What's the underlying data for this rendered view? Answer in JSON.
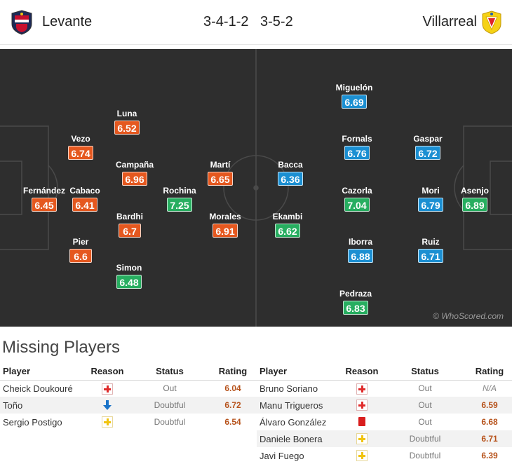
{
  "header": {
    "home_team": "Levante",
    "home_formation": "3-4-1-2",
    "away_formation": "3-5-2",
    "away_team": "Villarreal"
  },
  "pitch": {
    "watermark": "© WhoScored.com",
    "home_players": [
      {
        "name": "Fernández",
        "rating": "6.45",
        "rating_color": "orange"
      },
      {
        "name": "Vezo",
        "rating": "6.74",
        "rating_color": "orange"
      },
      {
        "name": "Cabaco",
        "rating": "6.41",
        "rating_color": "orange"
      },
      {
        "name": "Pier",
        "rating": "6.6",
        "rating_color": "orange"
      },
      {
        "name": "Luna",
        "rating": "6.52",
        "rating_color": "orange"
      },
      {
        "name": "Campaña",
        "rating": "6.96",
        "rating_color": "orange"
      },
      {
        "name": "Bardhi",
        "rating": "6.7",
        "rating_color": "orange"
      },
      {
        "name": "Simon",
        "rating": "6.48",
        "rating_color": "green"
      },
      {
        "name": "Rochina",
        "rating": "7.25",
        "rating_color": "green"
      },
      {
        "name": "Martí",
        "rating": "6.65",
        "rating_color": "orange"
      },
      {
        "name": "Morales",
        "rating": "6.91",
        "rating_color": "orange"
      }
    ],
    "away_players": [
      {
        "name": "Bacca",
        "rating": "6.36",
        "rating_color": "blue"
      },
      {
        "name": "Ekambi",
        "rating": "6.62",
        "rating_color": "green"
      },
      {
        "name": "Miguelón",
        "rating": "6.69",
        "rating_color": "blue"
      },
      {
        "name": "Fornals",
        "rating": "6.76",
        "rating_color": "blue"
      },
      {
        "name": "Cazorla",
        "rating": "7.04",
        "rating_color": "green"
      },
      {
        "name": "Iborra",
        "rating": "6.88",
        "rating_color": "blue"
      },
      {
        "name": "Pedraza",
        "rating": "6.83",
        "rating_color": "green"
      },
      {
        "name": "Gaspar",
        "rating": "6.72",
        "rating_color": "blue"
      },
      {
        "name": "Mori",
        "rating": "6.79",
        "rating_color": "blue"
      },
      {
        "name": "Ruiz",
        "rating": "6.71",
        "rating_color": "blue"
      },
      {
        "name": "Asenjo",
        "rating": "6.89",
        "rating_color": "green"
      }
    ]
  },
  "missing": {
    "title": "Missing Players",
    "columns": {
      "player": "Player",
      "reason": "Reason",
      "status": "Status",
      "rating": "Rating"
    },
    "home": [
      {
        "player": "Cheick Doukouré",
        "reason_icon": "injury-icon",
        "status": "Out",
        "rating": "6.04"
      },
      {
        "player": "Toño",
        "reason_icon": "down-arrow-icon",
        "status": "Doubtful",
        "rating": "6.72"
      },
      {
        "player": "Sergio Postigo",
        "reason_icon": "doubtful-icon",
        "status": "Doubtful",
        "rating": "6.54"
      }
    ],
    "away": [
      {
        "player": "Bruno Soriano",
        "reason_icon": "injury-icon",
        "status": "Out",
        "rating": "N/A"
      },
      {
        "player": "Manu Trigueros",
        "reason_icon": "injury-icon",
        "status": "Out",
        "rating": "6.59"
      },
      {
        "player": "Álvaro González",
        "reason_icon": "red-card-icon",
        "status": "Out",
        "rating": "6.68"
      },
      {
        "player": "Daniele Bonera",
        "reason_icon": "doubtful-icon",
        "status": "Doubtful",
        "rating": "6.71"
      },
      {
        "player": "Javi Fuego",
        "reason_icon": "doubtful-icon",
        "status": "Doubtful",
        "rating": "6.39"
      }
    ]
  }
}
